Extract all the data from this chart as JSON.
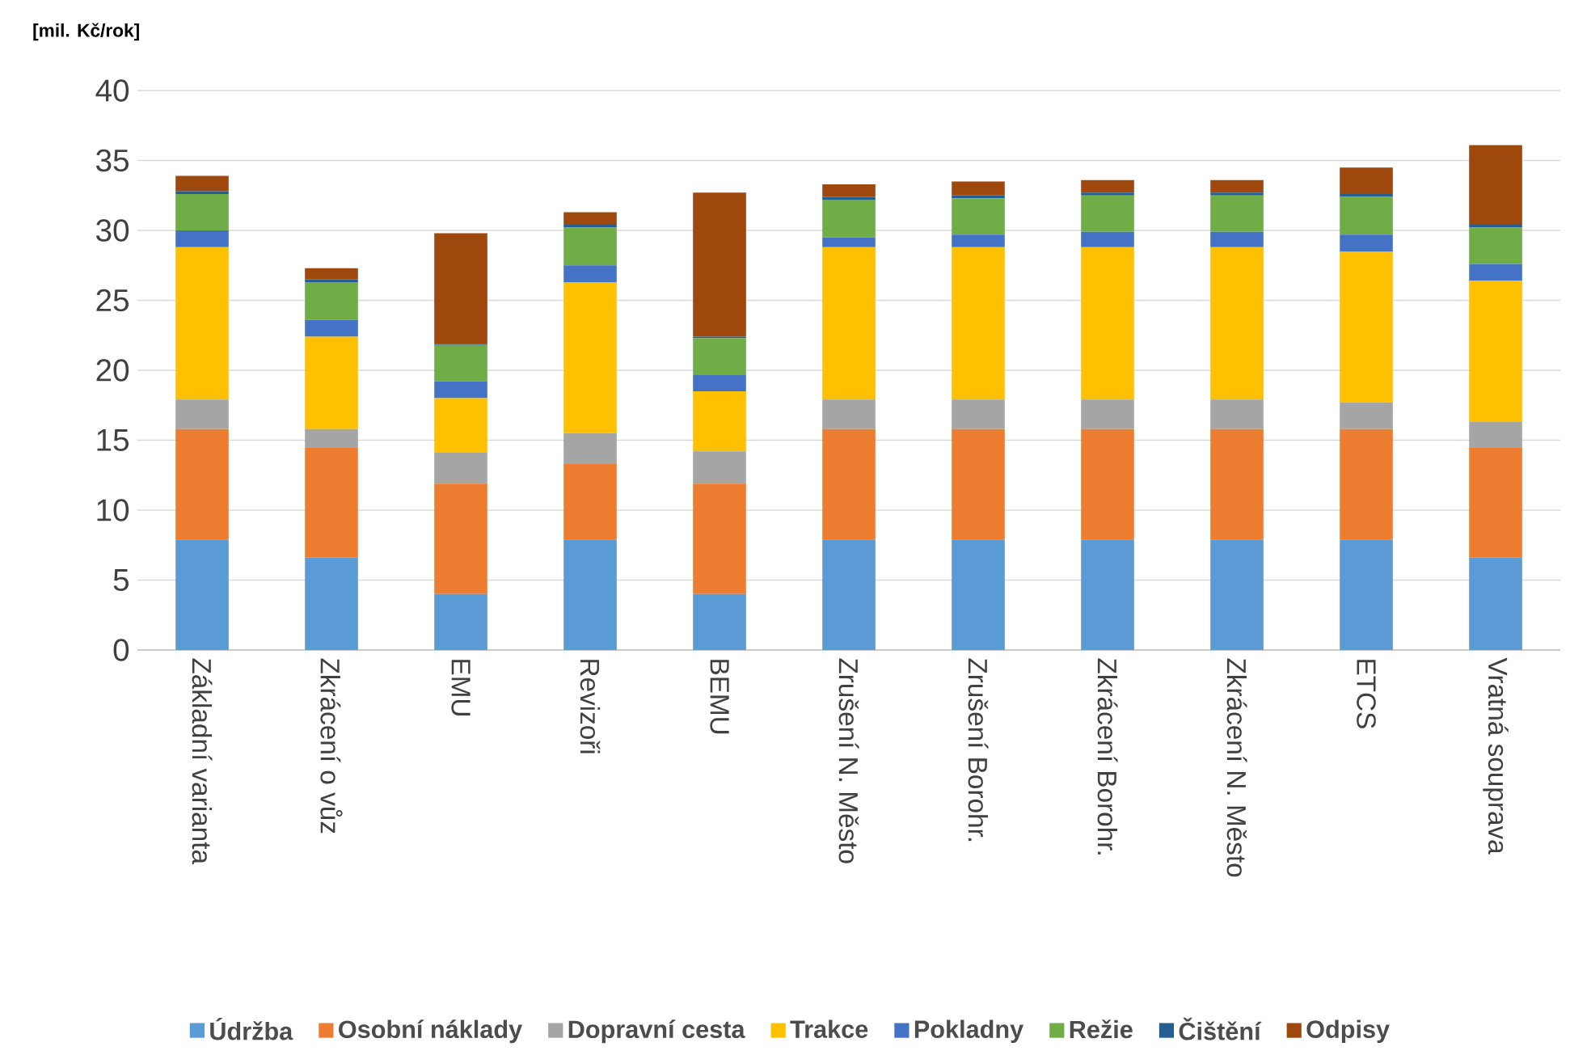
{
  "chart_data": {
    "type": "bar",
    "stacked": true,
    "ylabel": "[mil. Kč/rok]",
    "categories": [
      "Základní varianta",
      "Zkrácení o vůz",
      "EMU",
      "Revizoři",
      "BEMU",
      "Zrušení N. Město",
      "Zrušení Borohr.",
      "Zkrácení Borohr.",
      "Zkrácení N. Město",
      "ETCS",
      "Vratná souprava"
    ],
    "series": [
      {
        "name": "Údržba",
        "color": "#5b9bd5",
        "values": [
          7.9,
          6.6,
          4.0,
          7.9,
          4.0,
          7.9,
          7.9,
          7.9,
          7.9,
          7.9,
          6.6
        ]
      },
      {
        "name": "Osobní náklady",
        "color": "#ed7d31",
        "values": [
          7.9,
          7.9,
          7.9,
          5.4,
          7.9,
          7.9,
          7.9,
          7.9,
          7.9,
          7.9,
          7.9
        ]
      },
      {
        "name": "Dopravní cesta",
        "color": "#a5a5a5",
        "values": [
          2.1,
          1.3,
          2.2,
          2.2,
          2.3,
          2.1,
          2.1,
          2.1,
          2.1,
          1.9,
          1.8
        ]
      },
      {
        "name": "Trakce",
        "color": "#ffc000",
        "values": [
          10.9,
          6.6,
          3.9,
          10.8,
          4.3,
          10.9,
          10.9,
          10.9,
          10.9,
          10.8,
          10.1
        ]
      },
      {
        "name": "Pokladny",
        "color": "#4472c4",
        "values": [
          1.2,
          1.2,
          1.2,
          1.2,
          1.2,
          0.7,
          0.9,
          1.1,
          1.1,
          1.2,
          1.2
        ]
      },
      {
        "name": "Režie",
        "color": "#70ad47",
        "values": [
          2.6,
          2.7,
          2.6,
          2.7,
          2.6,
          2.7,
          2.6,
          2.6,
          2.6,
          2.7,
          2.6
        ]
      },
      {
        "name": "Čištění",
        "color": "#255e91",
        "values": [
          0.2,
          0.2,
          0.1,
          0.2,
          0.1,
          0.2,
          0.2,
          0.2,
          0.2,
          0.2,
          0.2
        ]
      },
      {
        "name": "Odpisy",
        "color": "#9e480e",
        "values": [
          1.1,
          0.8,
          7.9,
          0.9,
          10.3,
          0.9,
          1.0,
          0.9,
          0.9,
          1.9,
          5.7
        ]
      }
    ],
    "ylim": [
      0,
      40
    ],
    "yticks": [
      0,
      5,
      10,
      15,
      20,
      25,
      30,
      35,
      40
    ],
    "grid": "y",
    "legend": "bottom"
  }
}
